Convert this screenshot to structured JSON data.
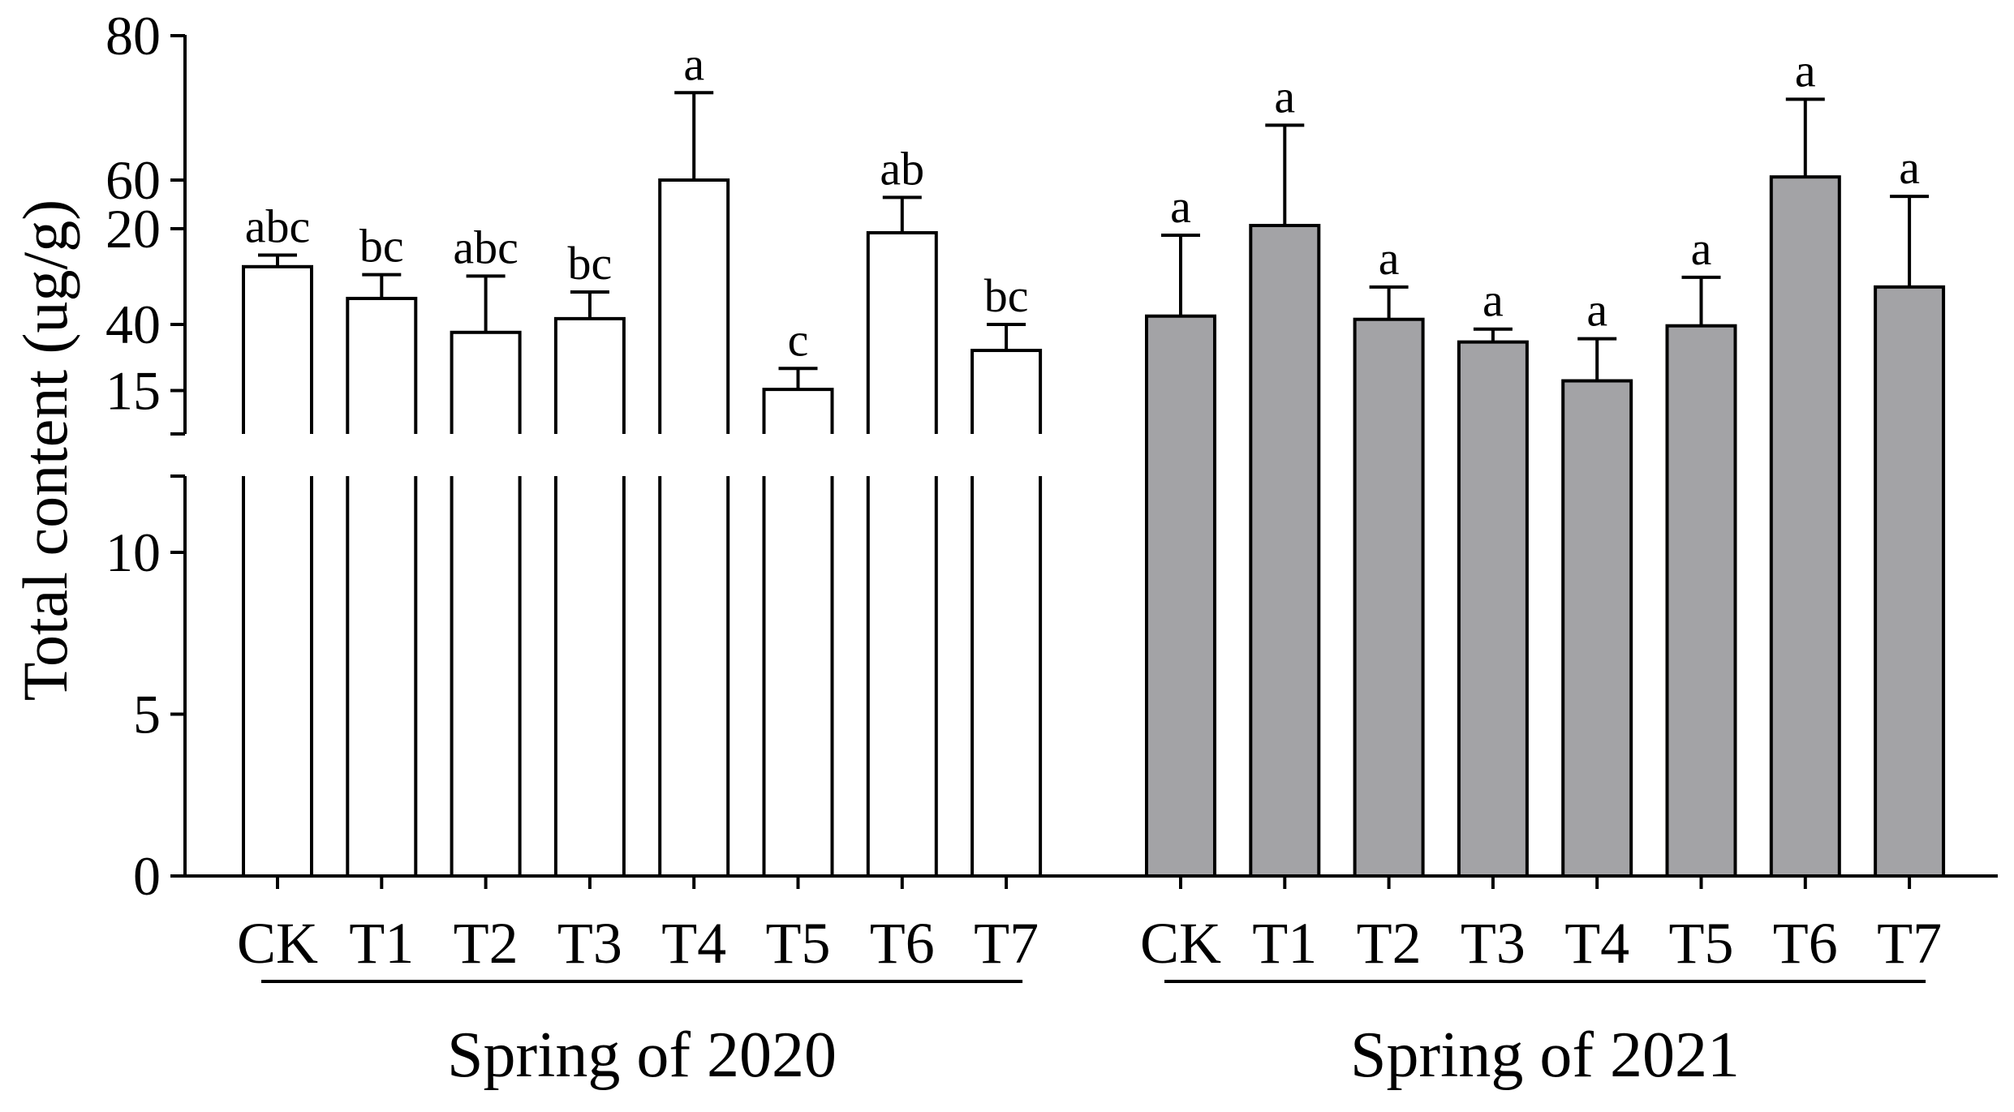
{
  "chart_data": {
    "type": "bar",
    "title": "",
    "ylabel": "Total content (ug/g)",
    "xlabel": "",
    "ylim": [
      0,
      80
    ],
    "axis_break": {
      "lower_max": 24.5,
      "upper_min": 26
    },
    "yticks_lower": [
      "0",
      "5",
      "10",
      "15",
      "20"
    ],
    "yticks_upper": [
      "40",
      "60",
      "80"
    ],
    "grid": false,
    "categories": [
      "CK",
      "T1",
      "T2",
      "T3",
      "T4",
      "T5",
      "T6",
      "T7"
    ],
    "groups": [
      {
        "label": "Spring of 2020",
        "color": "#ffffff",
        "values": [
          48.0,
          43.6,
          38.9,
          40.8,
          60.0,
          31.0,
          52.7,
          36.4
        ],
        "errors": [
          1.6,
          3.3,
          7.8,
          3.7,
          12.1,
          2.9,
          4.9,
          3.6
        ],
        "significance": [
          "abc",
          "bc",
          "abc",
          "bc",
          "a",
          "c",
          "ab",
          "bc"
        ]
      },
      {
        "label": "Spring of 2021",
        "color": "#a3a3a6",
        "values": [
          17.3,
          20.1,
          17.2,
          16.5,
          15.3,
          17.0,
          21.6,
          18.2
        ],
        "errors": [
          2.5,
          3.1,
          1.0,
          0.4,
          1.3,
          1.5,
          2.4,
          2.8
        ],
        "significance": [
          "a",
          "a",
          "a",
          "a",
          "a",
          "a",
          "a",
          "a"
        ]
      }
    ]
  }
}
